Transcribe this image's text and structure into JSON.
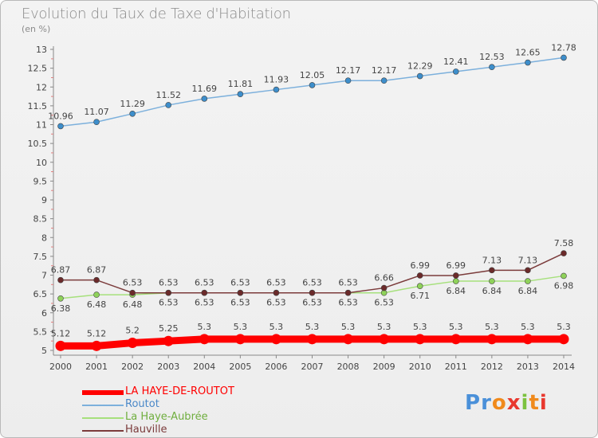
{
  "chart_data": {
    "type": "line",
    "title": "Evolution du Taux de Taxe d'Habitation",
    "subtitle": "(en %)",
    "x": [
      "2000",
      "2001",
      "2002",
      "2003",
      "2004",
      "2005",
      "2006",
      "2007",
      "2008",
      "2009",
      "2010",
      "2011",
      "2012",
      "2013",
      "2014"
    ],
    "yticks": [
      "5",
      "5.5",
      "6",
      "6.5",
      "7",
      "7.5",
      "8",
      "8.5",
      "9",
      "9.5",
      "10",
      "10.5",
      "11",
      "11.5",
      "12",
      "12.5",
      "13"
    ],
    "ylim": [
      5,
      13
    ],
    "grid": false,
    "legend_position": "bottom-left",
    "series": [
      {
        "name": "LA HAYE-DE-ROUTOT",
        "color": "#ff0000",
        "values": [
          5.12,
          5.12,
          5.2,
          5.25,
          5.3,
          5.3,
          5.3,
          5.3,
          5.3,
          5.3,
          5.3,
          5.3,
          5.3,
          5.3,
          5.3
        ],
        "labels": [
          "5.12",
          "5.12",
          "5.2",
          "5.25",
          "5.3",
          "5.3",
          "5.3",
          "5.3",
          "5.3",
          "5.3",
          "5.3",
          "5.3",
          "5.3",
          "5.3",
          "5.3"
        ]
      },
      {
        "name": "Routot",
        "color": "#7cb0dc",
        "values": [
          10.96,
          11.07,
          11.29,
          11.52,
          11.69,
          11.81,
          11.93,
          12.05,
          12.17,
          12.17,
          12.29,
          12.41,
          12.53,
          12.65,
          12.78
        ],
        "labels": [
          "10.96",
          "11.07",
          "11.29",
          "11.52",
          "11.69",
          "11.81",
          "11.93",
          "12.05",
          "12.17",
          "12.17",
          "12.29",
          "12.41",
          "12.53",
          "12.65",
          "12.78"
        ]
      },
      {
        "name": "La Haye-Aubrée",
        "color": "#a6e07c",
        "values": [
          6.38,
          6.48,
          6.48,
          6.53,
          6.53,
          6.53,
          6.53,
          6.53,
          6.53,
          6.53,
          6.71,
          6.84,
          6.84,
          6.84,
          6.98
        ],
        "labels": [
          "6.38",
          "6.48",
          "6.48",
          "6.53",
          "6.53",
          "6.53",
          "6.53",
          "6.53",
          "6.53",
          "6.53",
          "6.71",
          "6.84",
          "6.84",
          "6.84",
          "6.98"
        ]
      },
      {
        "name": "Hauville",
        "color": "#7b3b3b",
        "values": [
          6.87,
          6.87,
          6.53,
          6.53,
          6.53,
          6.53,
          6.53,
          6.53,
          6.53,
          6.66,
          6.99,
          6.99,
          7.13,
          7.13,
          7.58
        ],
        "labels": [
          "6.87",
          "6.87",
          "6.53",
          "6.53",
          "6.53",
          "6.53",
          "6.53",
          "6.53",
          "6.53",
          "6.66",
          "6.99",
          "6.99",
          "7.13",
          "7.13",
          "7.58"
        ]
      }
    ]
  },
  "logo": {
    "letters": [
      "P",
      "r",
      "o",
      "x",
      "i",
      "t",
      "i"
    ],
    "colors": [
      "#4a90d9",
      "#4a90d9",
      "#f08a1c",
      "#e8382e",
      "#7cc23f",
      "#f08a1c",
      "#e8382e"
    ]
  }
}
